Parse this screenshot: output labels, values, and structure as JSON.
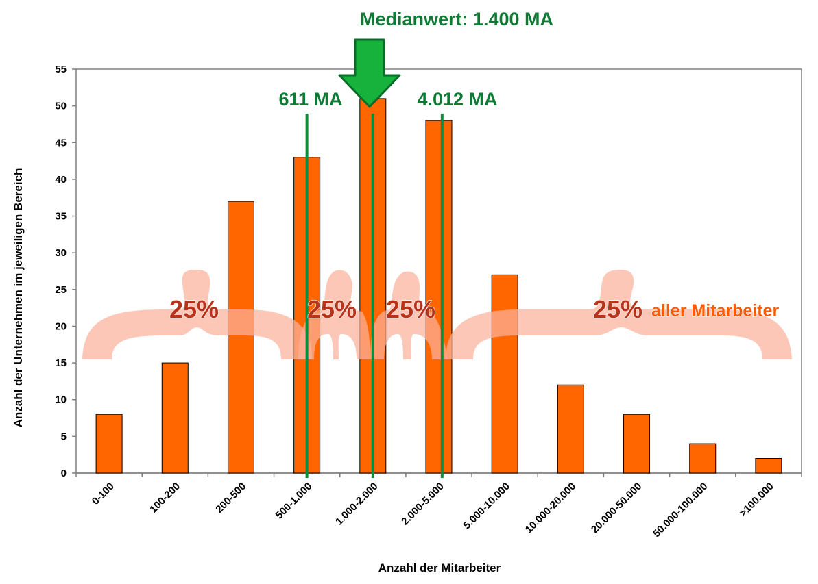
{
  "chart_data": {
    "type": "bar",
    "categories": [
      "0-100",
      "100-200",
      "200-500",
      "500-1.000",
      "1.000-2.000",
      "2.000-5.000",
      "5.000-10.000",
      "10.000-20.000",
      "20.000-50.000",
      "50.000-100.000",
      ">100.000"
    ],
    "values": [
      8,
      15,
      37,
      43,
      51,
      48,
      27,
      12,
      8,
      4,
      2
    ],
    "ylim": [
      0,
      55
    ],
    "yticks": [
      0,
      5,
      10,
      15,
      20,
      25,
      30,
      35,
      40,
      45,
      50,
      55
    ],
    "xlabel": "Anzahl der Mitarbeiter",
    "ylabel": "Anzahl der Unternehmen im jeweiligen Bereich",
    "bar_color": "#ff6600",
    "annotations": {
      "median_title": "Medianwert: 1.400 MA",
      "quartile_low": "611 MA",
      "quartile_high": "4.012 MA",
      "quartile_low_position": 3.0,
      "median_position": 4.0,
      "quartile_high_position": 5.05,
      "percent_labels": [
        "25%",
        "25%",
        "25%",
        "25%"
      ],
      "percent_suffix": "aller Mitarbeiter",
      "line_color": "#138a3c",
      "arrow_color": "#16b23c"
    }
  }
}
